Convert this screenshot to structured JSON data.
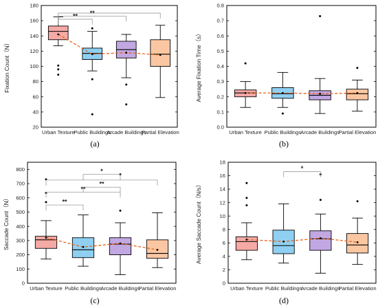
{
  "colors": {
    "Urban Texture": "#f5aaa6",
    "Public Buildings": "#8fd0f2",
    "Arcade Buildings": "#c2a8e2",
    "Partial Elevation": "#fbc7a2",
    "mean_line": "#e8621a",
    "bracket": "#999999"
  },
  "chart_data": [
    {
      "type": "box",
      "panel": "(a)",
      "categories": [
        "Urban Texture",
        "Public Buildings",
        "Arcade Buildings",
        "Partial Elevation"
      ],
      "ylabel": "Fixation Count（N）",
      "ylim": [
        20,
        180
      ],
      "yticks": [
        20,
        40,
        60,
        80,
        100,
        120,
        140,
        160,
        180
      ],
      "ytick_labels": [
        "20",
        "40",
        "60",
        "80",
        "100",
        "120",
        "140",
        "160",
        "180"
      ],
      "boxes": [
        {
          "whisker_low": 127,
          "q1": 135,
          "median": 146,
          "q3": 153,
          "whisker_high": 165,
          "mean": 142,
          "outliers": [
            89,
            96,
            101
          ]
        },
        {
          "whisker_low": 94,
          "q1": 109,
          "median": 117,
          "q3": 124,
          "whisker_high": 146,
          "mean": 116,
          "outliers": [
            37,
            83,
            150
          ]
        },
        {
          "whisker_low": 85,
          "q1": 111,
          "median": 122,
          "q3": 133,
          "whisker_high": 142,
          "mean": 118,
          "outliers": [
            50,
            76
          ]
        },
        {
          "whisker_low": 59,
          "q1": 100,
          "median": 116,
          "q3": 135,
          "whisker_high": 154,
          "mean": 115,
          "outliers": []
        }
      ],
      "brackets": [
        {
          "from": 0,
          "to": 1,
          "y": 162,
          "label": "**"
        },
        {
          "from": 0,
          "to": 2,
          "y": 166,
          "label": "**"
        },
        {
          "from": 0,
          "to": 3,
          "y": 170,
          "label": ""
        }
      ]
    },
    {
      "type": "box",
      "panel": "(b)",
      "categories": [
        "Urban Texture",
        "Public Buildings",
        "Arcade Buildings",
        "Partial Elevation"
      ],
      "ylabel": "Average Fixation Time（s）",
      "ylim": [
        0,
        0.8
      ],
      "yticks": [
        0,
        0.1,
        0.2,
        0.3,
        0.4,
        0.5,
        0.6,
        0.7,
        0.8
      ],
      "ytick_labels": [
        "0.0",
        "0.1",
        "0.2",
        "0.3",
        "0.4",
        "0.5",
        "0.6",
        "0.7",
        "0.8"
      ],
      "boxes": [
        {
          "whisker_low": 0.13,
          "q1": 0.2,
          "median": 0.225,
          "q3": 0.245,
          "whisker_high": 0.3,
          "mean": 0.225,
          "outliers": [
            0.42
          ]
        },
        {
          "whisker_low": 0.13,
          "q1": 0.19,
          "median": 0.22,
          "q3": 0.26,
          "whisker_high": 0.36,
          "mean": 0.225,
          "outliers": [
            0.09
          ]
        },
        {
          "whisker_low": 0.09,
          "q1": 0.18,
          "median": 0.21,
          "q3": 0.24,
          "whisker_high": 0.32,
          "mean": 0.22,
          "outliers": [
            0.73
          ]
        },
        {
          "whisker_low": 0.105,
          "q1": 0.18,
          "median": 0.22,
          "q3": 0.25,
          "whisker_high": 0.31,
          "mean": 0.225,
          "outliers": [
            0.39
          ]
        }
      ],
      "brackets": []
    },
    {
      "type": "box",
      "panel": "(c)",
      "categories": [
        "Urban Texture",
        "Public Buildings",
        "Arcade Buildings",
        "Partial Elevation"
      ],
      "ylabel": "Saccade Count（N）",
      "ylim": [
        0,
        850
      ],
      "yticks": [
        0,
        100,
        200,
        300,
        400,
        500,
        600,
        700,
        800
      ],
      "ytick_labels": [
        "0",
        "100",
        "200",
        "300",
        "400",
        "500",
        "600",
        "700",
        "800"
      ],
      "boxes": [
        {
          "whisker_low": 170,
          "q1": 245,
          "median": 305,
          "q3": 330,
          "whisker_high": 440,
          "mean": 320,
          "outliers": [
            570,
            635,
            730
          ]
        },
        {
          "whisker_low": 120,
          "q1": 180,
          "median": 235,
          "q3": 320,
          "whisker_high": 480,
          "mean": 255,
          "outliers": []
        },
        {
          "whisker_low": 60,
          "q1": 200,
          "median": 275,
          "q3": 320,
          "whisker_high": 425,
          "mean": 280,
          "outliers": [
            510,
            765
          ]
        },
        {
          "whisker_low": 110,
          "q1": 175,
          "median": 210,
          "q3": 305,
          "whisker_high": 495,
          "mean": 235,
          "outliers": []
        }
      ],
      "brackets": [
        {
          "from": 0,
          "to": 1,
          "y": 550,
          "label": "**"
        },
        {
          "from": 0,
          "to": 2,
          "y": 640,
          "label": "**"
        },
        {
          "from": 0,
          "to": 3,
          "y": 725,
          "label": ""
        },
        {
          "from": 1,
          "to": 2,
          "y": 675,
          "label": "**"
        },
        {
          "from": 1,
          "to": 2,
          "y": 765,
          "label": "*"
        }
      ]
    },
    {
      "type": "box",
      "panel": "(d)",
      "categories": [
        "Urban Texture",
        "Public Buildings",
        "Arcade Buildings",
        "Partial Elevation"
      ],
      "ylabel": "Average Saccade Count（N/s）",
      "ylim": [
        0,
        18
      ],
      "yticks": [
        0,
        2,
        4,
        6,
        8,
        10,
        12,
        14,
        16,
        18
      ],
      "ytick_labels": [
        "0",
        "2",
        "4",
        "6",
        "8",
        "10",
        "12",
        "14",
        "16",
        "18"
      ],
      "boxes": [
        {
          "whisker_low": 3.5,
          "q1": 4.9,
          "median": 6.2,
          "q3": 6.9,
          "whisker_high": 9.0,
          "mean": 6.5,
          "outliers": [
            11.6,
            12.7,
            14.9
          ]
        },
        {
          "whisker_low": 3.0,
          "q1": 4.4,
          "median": 5.6,
          "q3": 7.9,
          "whisker_high": 11.8,
          "mean": 6.2,
          "outliers": []
        },
        {
          "whisker_low": 1.5,
          "q1": 4.9,
          "median": 6.6,
          "q3": 7.8,
          "whisker_high": 10.3,
          "mean": 6.7,
          "outliers": [
            12.4,
            16.2
          ]
        },
        {
          "whisker_low": 2.8,
          "q1": 4.5,
          "median": 5.7,
          "q3": 7.4,
          "whisker_high": 9.7,
          "mean": 6.1,
          "outliers": [
            12.2
          ]
        }
      ],
      "brackets": [
        {
          "from": 1,
          "to": 2,
          "y": 16.6,
          "label": "*"
        }
      ]
    }
  ]
}
